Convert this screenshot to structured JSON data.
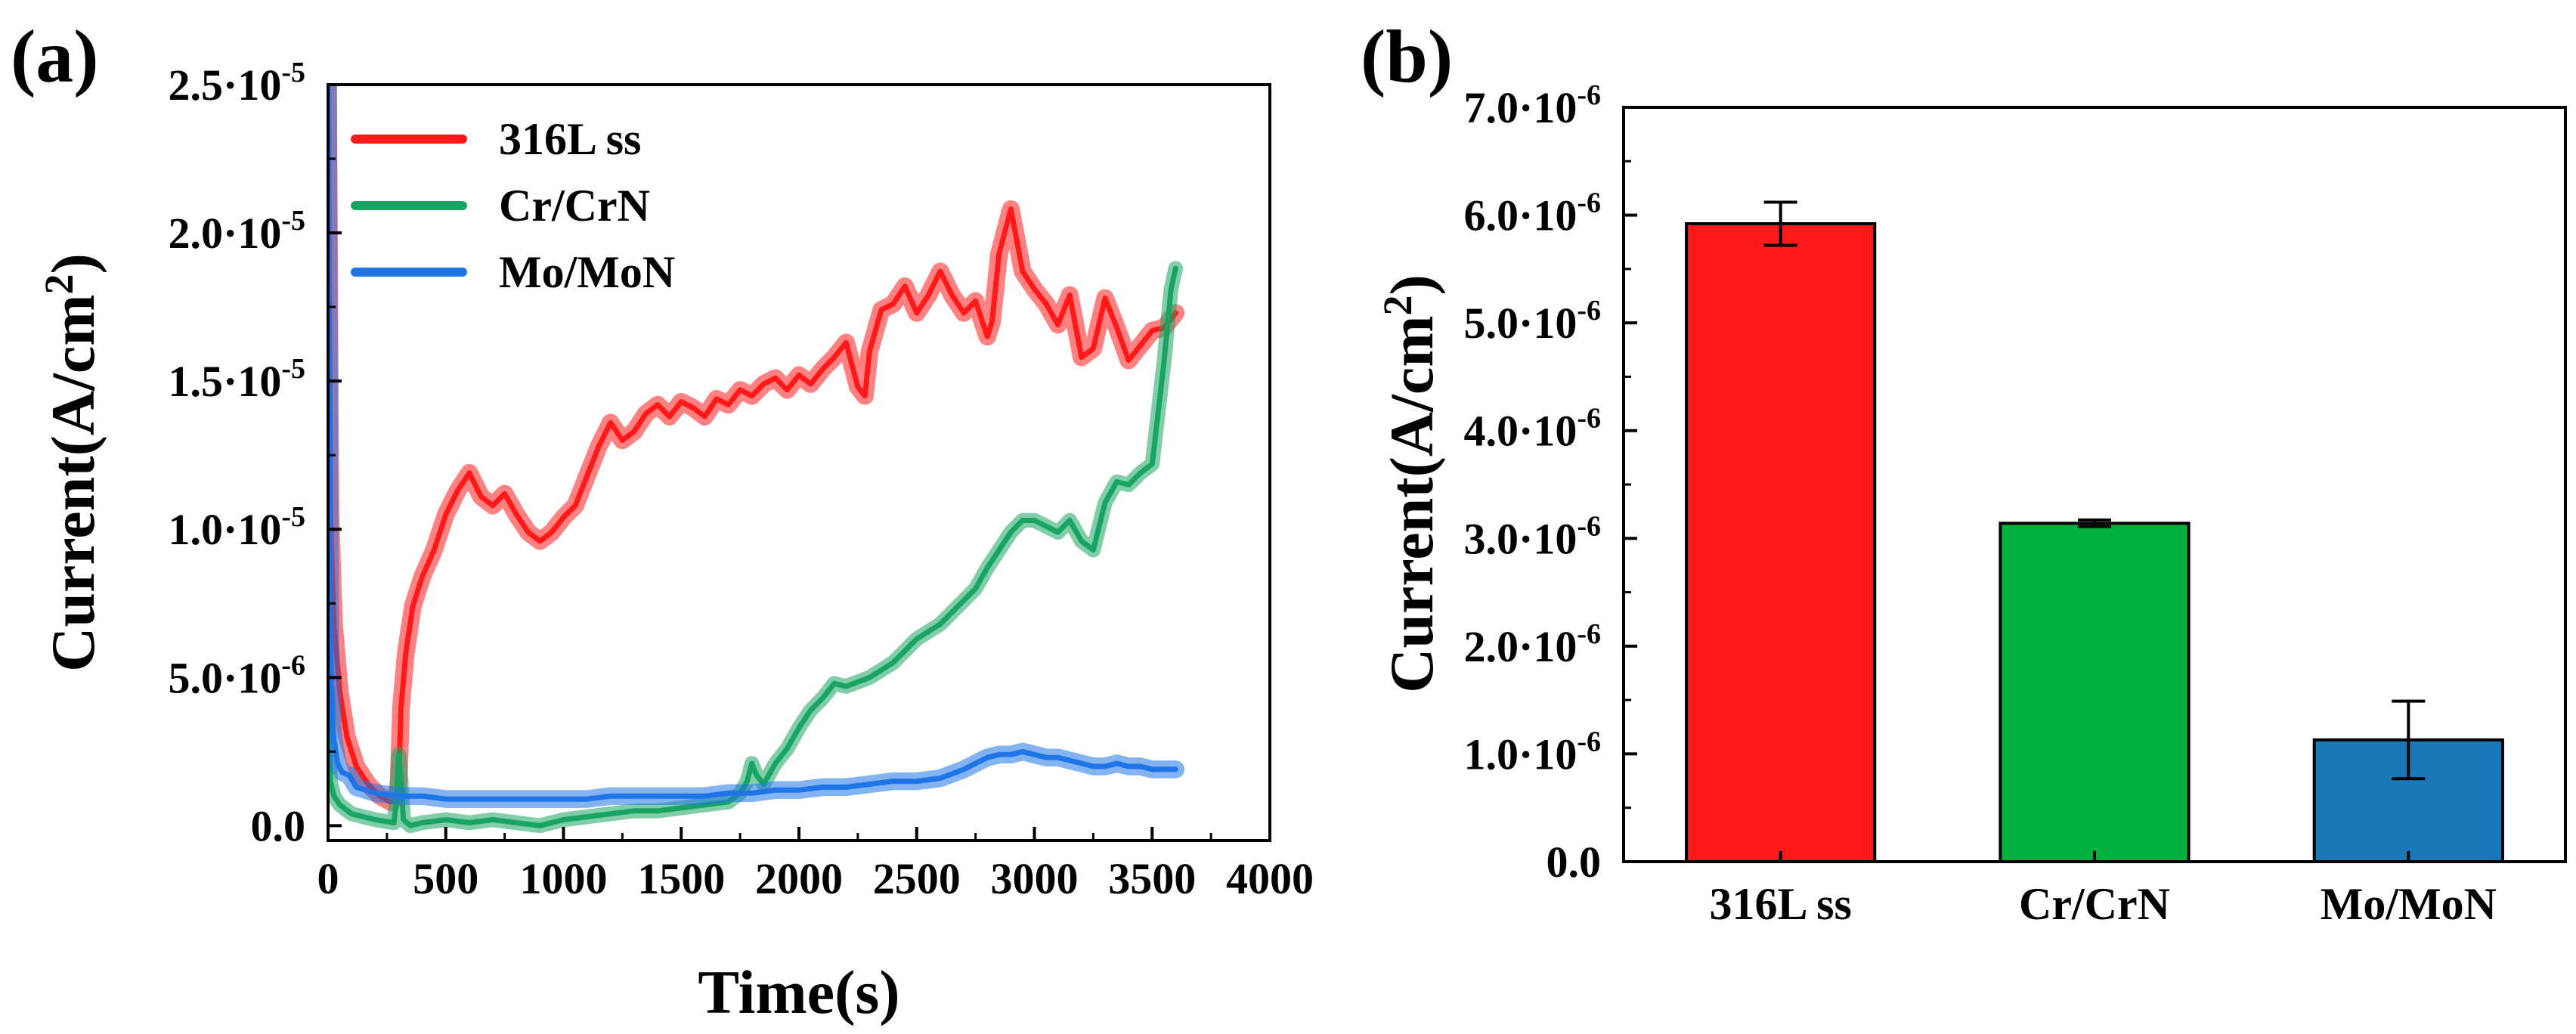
{
  "chart_data": [
    {
      "panel": "(a)",
      "type": "line",
      "xlabel": "Time(s)",
      "ylabel": "Current(A/cm²)",
      "ylabel_main": "Current(A/cm",
      "ylabel_sup": "2",
      "ylabel_close": ")",
      "xlim": [
        0,
        4000
      ],
      "ylim": [
        -5e-07,
        2.5e-05
      ],
      "xticks": [
        0,
        500,
        1000,
        1500,
        2000,
        2500,
        3000,
        3500,
        4000
      ],
      "xtick_labels": [
        "0",
        "500",
        "1000",
        "1500",
        "2000",
        "2500",
        "3000",
        "3500",
        "4000"
      ],
      "yticks": [
        0,
        5e-06,
        1e-05,
        1.5e-05,
        2e-05,
        2.5e-05
      ],
      "ytick_labels": [
        {
          "text": "0.0",
          "mant": "0.0",
          "exp": ""
        },
        {
          "text": "5.0·10⁻⁶",
          "mant": "5.0·10",
          "exp": "-6"
        },
        {
          "text": "1.0·10⁻⁵",
          "mant": "1.0·10",
          "exp": "-5"
        },
        {
          "text": "1.5·10⁻⁵",
          "mant": "1.5·10",
          "exp": "-5"
        },
        {
          "text": "2.0·10⁻⁵",
          "mant": "2.0·10",
          "exp": "-5"
        },
        {
          "text": "2.5·10⁻⁵",
          "mant": "2.5·10",
          "exp": "-5"
        }
      ],
      "legend_position": "top-left",
      "series": [
        {
          "name": "316L ss",
          "color": "#ff1a1a",
          "x": [
            0,
            10,
            25,
            50,
            80,
            120,
            170,
            220,
            265,
            290,
            300,
            310,
            330,
            360,
            400,
            450,
            500,
            550,
            600,
            650,
            700,
            750,
            800,
            850,
            900,
            950,
            1000,
            1050,
            1100,
            1150,
            1200,
            1250,
            1300,
            1350,
            1400,
            1450,
            1500,
            1550,
            1600,
            1650,
            1700,
            1750,
            1800,
            1850,
            1900,
            1950,
            2000,
            2050,
            2100,
            2150,
            2200,
            2250,
            2280,
            2300,
            2350,
            2400,
            2450,
            2500,
            2550,
            2600,
            2650,
            2700,
            2750,
            2800,
            2820,
            2850,
            2900,
            2950,
            3000,
            3050,
            3100,
            3150,
            3200,
            3250,
            3300,
            3350,
            3400,
            3450,
            3500,
            3550,
            3600
          ],
          "y": [
            2.5e-05,
            1.05e-05,
            6.8e-06,
            4.5e-06,
            3e-06,
            2e-06,
            1.4e-06,
            1e-06,
            8e-07,
            9e-07,
            1.5e-06,
            4e-06,
            5.8e-06,
            7.4e-06,
            8.4e-06,
            9.3e-06,
            1.05e-05,
            1.13e-05,
            1.19e-05,
            1.11e-05,
            1.08e-05,
            1.12e-05,
            1.05e-05,
            9.9e-06,
            9.6e-06,
            9.9e-06,
            1.04e-05,
            1.08e-05,
            1.18e-05,
            1.28e-05,
            1.36e-05,
            1.3e-05,
            1.33e-05,
            1.39e-05,
            1.42e-05,
            1.38e-05,
            1.43e-05,
            1.41e-05,
            1.38e-05,
            1.44e-05,
            1.42e-05,
            1.47e-05,
            1.45e-05,
            1.49e-05,
            1.51e-05,
            1.47e-05,
            1.52e-05,
            1.49e-05,
            1.54e-05,
            1.58e-05,
            1.63e-05,
            1.48e-05,
            1.45e-05,
            1.6e-05,
            1.74e-05,
            1.76e-05,
            1.82e-05,
            1.73e-05,
            1.79e-05,
            1.87e-05,
            1.79e-05,
            1.73e-05,
            1.77e-05,
            1.65e-05,
            1.7e-05,
            1.93e-05,
            2.08e-05,
            1.87e-05,
            1.81e-05,
            1.76e-05,
            1.69e-05,
            1.79e-05,
            1.58e-05,
            1.61e-05,
            1.78e-05,
            1.68e-05,
            1.57e-05,
            1.62e-05,
            1.67e-05,
            1.68e-05,
            1.73e-05
          ],
          "band": 6e-07
        },
        {
          "name": "Cr/CrN",
          "color": "#19a463",
          "x": [
            0,
            10,
            25,
            50,
            100,
            200,
            280,
            290,
            300,
            310,
            320,
            350,
            400,
            500,
            600,
            700,
            800,
            900,
            1000,
            1100,
            1200,
            1300,
            1400,
            1500,
            1600,
            1700,
            1750,
            1780,
            1800,
            1820,
            1850,
            1900,
            1950,
            2000,
            2050,
            2100,
            2150,
            2200,
            2300,
            2400,
            2500,
            2600,
            2700,
            2750,
            2800,
            2850,
            2900,
            2950,
            3000,
            3050,
            3100,
            3150,
            3200,
            3250,
            3300,
            3350,
            3400,
            3450,
            3500,
            3550,
            3580,
            3600
          ],
          "y": [
            4.5e-06,
            1.5e-06,
            1e-06,
            7e-07,
            4e-07,
            2e-07,
            1e-07,
            8e-07,
            2.4e-06,
            1.5e-06,
            2e-07,
            0,
            1e-07,
            2e-07,
            1e-07,
            2e-07,
            1e-07,
            0,
            2e-07,
            3e-07,
            4e-07,
            5e-07,
            5e-07,
            6e-07,
            7e-07,
            8e-07,
            1.1e-06,
            1.5e-06,
            2.1e-06,
            1.7e-06,
            1.4e-06,
            2.1e-06,
            2.6e-06,
            3.3e-06,
            3.9e-06,
            4.3e-06,
            4.8e-06,
            4.7e-06,
            5e-06,
            5.5e-06,
            6.3e-06,
            6.8e-06,
            7.6e-06,
            8e-06,
            8.7e-06,
            9.3e-06,
            9.9e-06,
            1.03e-05,
            1.03e-05,
            1.01e-05,
            9.9e-06,
            1.03e-05,
            9.6e-06,
            9.3e-06,
            1.09e-05,
            1.16e-05,
            1.15e-05,
            1.19e-05,
            1.22e-05,
            1.56e-05,
            1.81e-05,
            1.88e-05
          ],
          "band": 5e-07
        },
        {
          "name": "Mo/MoN",
          "color": "#1f75e6",
          "x": [
            0,
            5,
            10,
            20,
            40,
            60,
            90,
            120,
            160,
            200,
            300,
            400,
            500,
            600,
            700,
            800,
            900,
            1000,
            1100,
            1200,
            1300,
            1400,
            1500,
            1600,
            1700,
            1800,
            1900,
            2000,
            2100,
            2200,
            2300,
            2400,
            2500,
            2600,
            2700,
            2750,
            2800,
            2850,
            2900,
            2950,
            3000,
            3050,
            3100,
            3150,
            3200,
            3250,
            3300,
            3350,
            3400,
            3450,
            3500,
            3550,
            3600
          ],
          "y": [
            2.5e-05,
            1.2e-05,
            6e-06,
            3.2e-06,
            2.1e-06,
            1.8e-06,
            1.7e-06,
            1.3e-06,
            1.2e-06,
            1.1e-06,
            1e-06,
            1e-06,
            9e-07,
            9e-07,
            9e-07,
            9e-07,
            9e-07,
            9e-07,
            9e-07,
            1e-06,
            1e-06,
            1e-06,
            1e-06,
            1e-06,
            1.1e-06,
            1.1e-06,
            1.2e-06,
            1.2e-06,
            1.3e-06,
            1.3e-06,
            1.4e-06,
            1.5e-06,
            1.5e-06,
            1.6e-06,
            1.9e-06,
            2.1e-06,
            2.3e-06,
            2.4e-06,
            2.4e-06,
            2.5e-06,
            2.4e-06,
            2.3e-06,
            2.3e-06,
            2.2e-06,
            2.1e-06,
            2e-06,
            2e-06,
            2.1e-06,
            2e-06,
            2e-06,
            1.9e-06,
            1.9e-06,
            1.9e-06
          ],
          "band": 6e-07
        }
      ]
    },
    {
      "panel": "(b)",
      "type": "bar",
      "xlabel": "",
      "ylabel": "Current(A/cm²)",
      "ylabel_main": "Current(A/cm",
      "ylabel_sup": "2",
      "ylabel_close": ")",
      "ylim": [
        0,
        7e-06
      ],
      "yticks": [
        0,
        1e-06,
        2e-06,
        3e-06,
        4e-06,
        5e-06,
        6e-06,
        7e-06
      ],
      "ytick_labels": [
        {
          "text": "0.0",
          "mant": "0.0",
          "exp": ""
        },
        {
          "text": "1.0·10⁻⁶",
          "mant": "1.0·10",
          "exp": "-6"
        },
        {
          "text": "2.0·10⁻⁶",
          "mant": "2.0·10",
          "exp": "-6"
        },
        {
          "text": "3.0·10⁻⁶",
          "mant": "3.0·10",
          "exp": "-6"
        },
        {
          "text": "4.0·10⁻⁶",
          "mant": "4.0·10",
          "exp": "-6"
        },
        {
          "text": "5.0·10⁻⁶",
          "mant": "5.0·10",
          "exp": "-6"
        },
        {
          "text": "6.0·10⁻⁶",
          "mant": "6.0·10",
          "exp": "-6"
        },
        {
          "text": "7.0·10⁻⁶",
          "mant": "7.0·10",
          "exp": "-6"
        }
      ],
      "categories": [
        "316L ss",
        "Cr/CrN",
        "Mo/MoN"
      ],
      "values": [
        5.92e-06,
        3.14e-06,
        1.13e-06
      ],
      "errors": [
        2e-07,
        3e-08,
        3.6e-07
      ],
      "colors": [
        "#ff1a1a",
        "#00b140",
        "#1b78b8"
      ]
    }
  ]
}
